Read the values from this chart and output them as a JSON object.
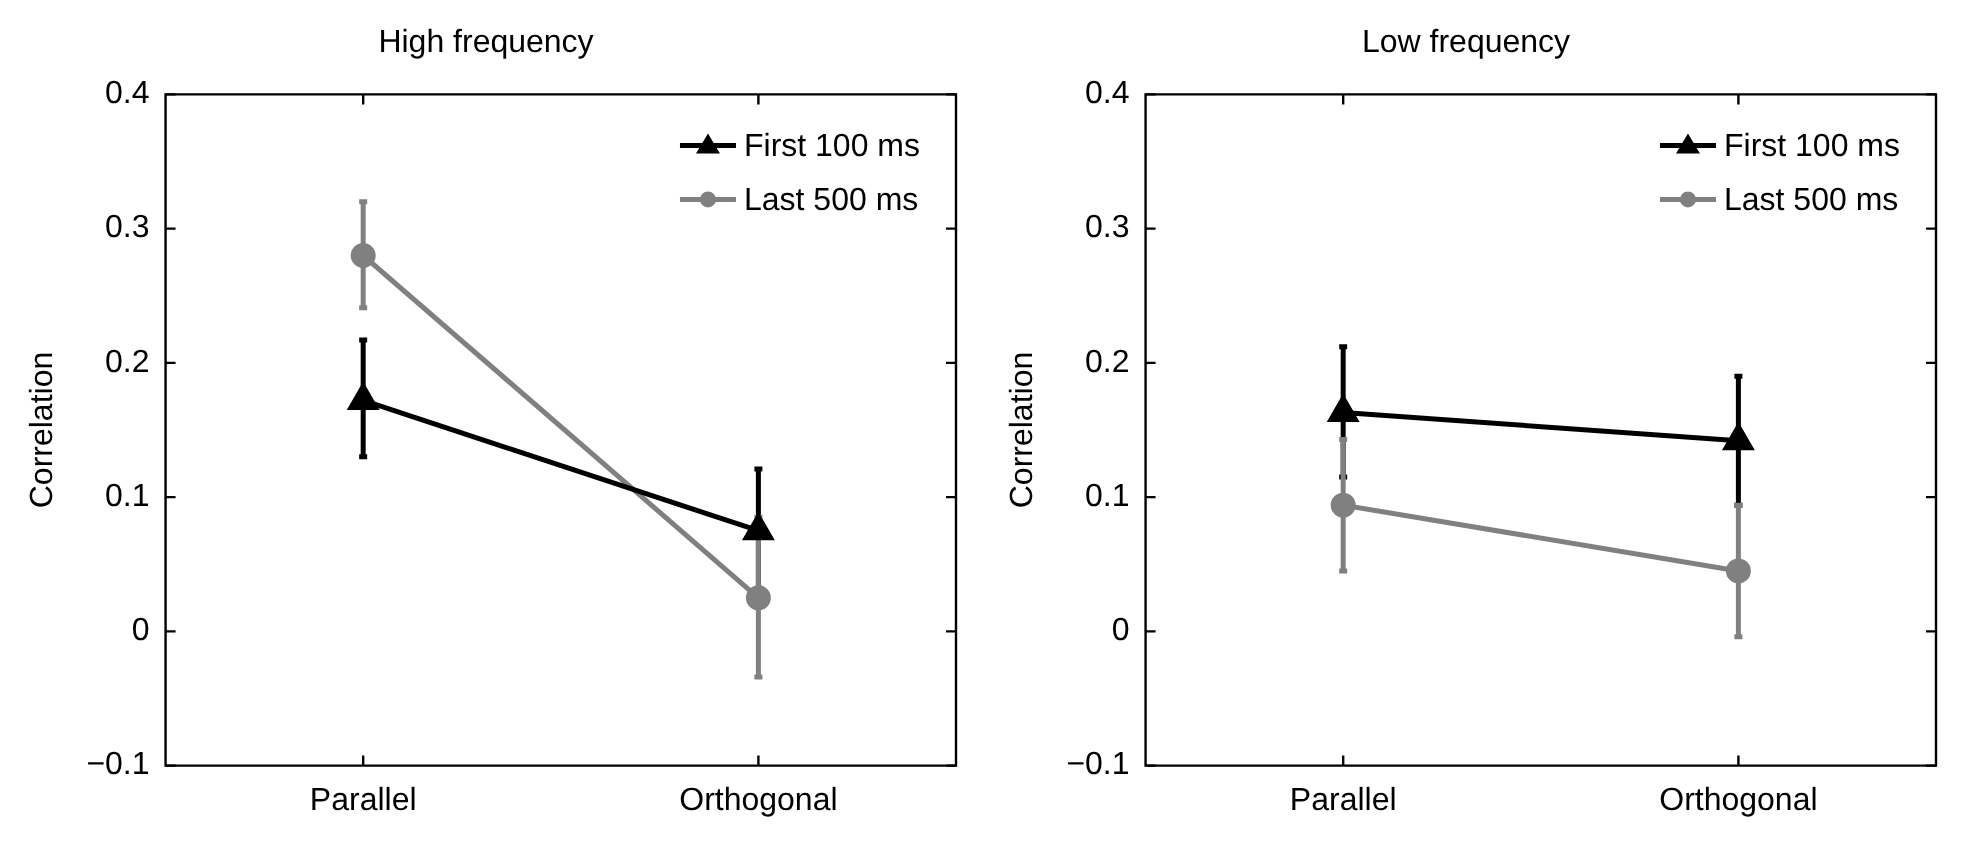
{
  "chart_data": [
    {
      "type": "line",
      "title": "High frequency",
      "ylabel": "Correlation",
      "categories": [
        "Parallel",
        "Orthogonal"
      ],
      "ylim": [
        -0.1,
        0.4
      ],
      "yticks": [
        {
          "value": -0.1,
          "label": "−0.1"
        },
        0,
        0.1,
        0.2,
        0.3,
        0.4
      ],
      "legend": "top right",
      "grid": false,
      "series": [
        {
          "name": "First 100 ms",
          "color": "#000000",
          "marker": "triangle",
          "values": [
            0.172,
            0.075
          ],
          "errors": [
            [
              0.13,
              0.217
            ],
            [
              0.029,
              0.121
            ]
          ]
        },
        {
          "name": "Last 500 ms",
          "color": "#808080",
          "marker": "circle",
          "values": [
            0.28,
            0.025
          ],
          "errors": [
            [
              0.241,
              0.32
            ],
            [
              -0.034,
              0.085
            ]
          ]
        }
      ]
    },
    {
      "type": "line",
      "title": "Low frequency",
      "ylabel": "Correlation",
      "categories": [
        "Parallel",
        "Orthogonal"
      ],
      "ylim": [
        -0.1,
        0.4
      ],
      "yticks": [
        {
          "value": -0.1,
          "label": "−0.1"
        },
        0,
        0.1,
        0.2,
        0.3,
        0.4
      ],
      "legend": "top right",
      "grid": false,
      "series": [
        {
          "name": "First 100 ms",
          "color": "#000000",
          "marker": "triangle",
          "values": [
            0.163,
            0.142
          ],
          "errors": [
            [
              0.115,
              0.212
            ],
            [
              0.094,
              0.19
            ]
          ]
        },
        {
          "name": "Last 500 ms",
          "color": "#808080",
          "marker": "circle",
          "values": [
            0.094,
            0.045
          ],
          "errors": [
            [
              0.045,
              0.143
            ],
            [
              -0.004,
              0.094
            ]
          ]
        }
      ]
    }
  ]
}
